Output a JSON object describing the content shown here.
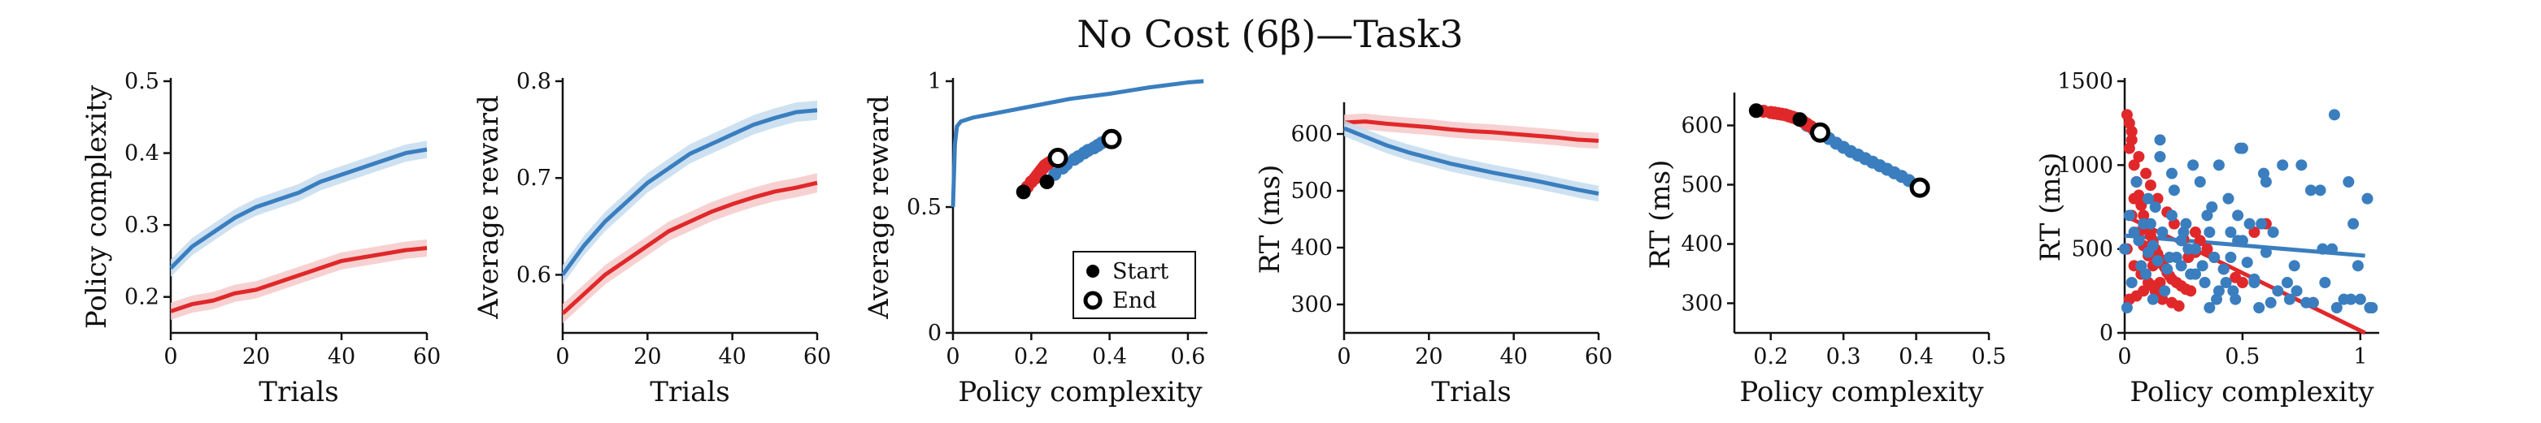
{
  "figure": {
    "title": "No Cost (6β)—Task3"
  },
  "colors": {
    "blue": "#3a7ebf",
    "red": "#e0282a",
    "blue_band": "#c6dcef",
    "red_band": "#f6c9c9"
  },
  "chart_data": [
    {
      "type": "line",
      "xlabel": "Trials",
      "ylabel": "Policy complexity",
      "xlim": [
        0,
        60
      ],
      "ylim": [
        0.15,
        0.5
      ],
      "xticks": [
        0,
        20,
        40,
        60
      ],
      "yticks": [
        0.2,
        0.3,
        0.4,
        0.5
      ],
      "ytick_labels": [
        "0.2",
        "0.3",
        "0.4",
        "0.5"
      ],
      "band": 0.012,
      "series": [
        {
          "color": "blue",
          "x": [
            0,
            5,
            10,
            15,
            20,
            25,
            30,
            35,
            40,
            45,
            50,
            55,
            60
          ],
          "y": [
            0.24,
            0.27,
            0.29,
            0.31,
            0.325,
            0.335,
            0.345,
            0.36,
            0.37,
            0.38,
            0.39,
            0.4,
            0.405
          ]
        },
        {
          "color": "red",
          "x": [
            0,
            5,
            10,
            15,
            20,
            25,
            30,
            35,
            40,
            45,
            50,
            55,
            60
          ],
          "y": [
            0.18,
            0.19,
            0.195,
            0.205,
            0.21,
            0.22,
            0.23,
            0.24,
            0.25,
            0.255,
            0.26,
            0.265,
            0.268
          ]
        }
      ]
    },
    {
      "type": "line",
      "xlabel": "Trials",
      "ylabel": "Average reward",
      "xlim": [
        0,
        60
      ],
      "ylim": [
        0.54,
        0.8
      ],
      "xticks": [
        0,
        20,
        40,
        60
      ],
      "yticks": [
        0.6,
        0.7,
        0.8
      ],
      "ytick_labels": [
        "0.6",
        "0.7",
        "0.8"
      ],
      "band": 0.01,
      "series": [
        {
          "color": "blue",
          "x": [
            0,
            5,
            10,
            15,
            20,
            25,
            30,
            35,
            40,
            45,
            50,
            55,
            60
          ],
          "y": [
            0.6,
            0.63,
            0.655,
            0.675,
            0.695,
            0.71,
            0.725,
            0.735,
            0.745,
            0.755,
            0.762,
            0.768,
            0.77
          ]
        },
        {
          "color": "red",
          "x": [
            0,
            5,
            10,
            15,
            20,
            25,
            30,
            35,
            40,
            45,
            50,
            55,
            60
          ],
          "y": [
            0.56,
            0.58,
            0.6,
            0.615,
            0.63,
            0.645,
            0.655,
            0.665,
            0.673,
            0.68,
            0.686,
            0.69,
            0.695
          ]
        }
      ]
    },
    {
      "type": "scatter",
      "xlabel": "Policy complexity",
      "ylabel": "Average reward",
      "xlim": [
        0,
        0.65
      ],
      "ylim": [
        0,
        1
      ],
      "xticks": [
        0,
        0.2,
        0.4,
        0.6
      ],
      "yticks": [
        0,
        0.5,
        1
      ],
      "xtick_labels": [
        "0",
        "0.2",
        "0.4",
        "0.6"
      ],
      "ytick_labels": [
        "0",
        "0.5",
        "1"
      ],
      "curve": {
        "color": "blue",
        "x": [
          0,
          0.005,
          0.01,
          0.02,
          0.05,
          0.1,
          0.2,
          0.3,
          0.4,
          0.5,
          0.6,
          0.64
        ],
        "y": [
          0.5,
          0.75,
          0.82,
          0.84,
          0.855,
          0.87,
          0.9,
          0.93,
          0.95,
          0.975,
          0.995,
          1.0
        ]
      },
      "red_points": {
        "x": [
          0.18,
          0.19,
          0.2,
          0.21,
          0.215,
          0.22,
          0.225,
          0.23,
          0.235,
          0.24,
          0.245,
          0.25,
          0.255,
          0.26,
          0.265,
          0.268
        ],
        "y": [
          0.56,
          0.58,
          0.6,
          0.615,
          0.625,
          0.635,
          0.645,
          0.655,
          0.665,
          0.67,
          0.675,
          0.68,
          0.685,
          0.69,
          0.693,
          0.695
        ]
      },
      "blue_points": {
        "x": [
          0.24,
          0.26,
          0.28,
          0.29,
          0.31,
          0.32,
          0.335,
          0.345,
          0.36,
          0.37,
          0.38,
          0.39,
          0.4,
          0.405
        ],
        "y": [
          0.6,
          0.63,
          0.655,
          0.67,
          0.69,
          0.7,
          0.715,
          0.725,
          0.735,
          0.745,
          0.755,
          0.762,
          0.768,
          0.77
        ]
      },
      "start_points": [
        {
          "x": 0.18,
          "y": 0.56
        },
        {
          "x": 0.24,
          "y": 0.6
        }
      ],
      "end_points": [
        {
          "x": 0.268,
          "y": 0.695
        },
        {
          "x": 0.405,
          "y": 0.77
        }
      ],
      "legend": {
        "position": "bottom-right",
        "entries": [
          "Start",
          "End"
        ]
      }
    },
    {
      "type": "line",
      "xlabel": "Trials",
      "ylabel": "RT (ms)",
      "xlim": [
        0,
        60
      ],
      "ylim": [
        250,
        650
      ],
      "xticks": [
        0,
        20,
        40,
        60
      ],
      "yticks": [
        300,
        400,
        500,
        600
      ],
      "ytick_labels": [
        "300",
        "400",
        "500",
        "600"
      ],
      "band": 14,
      "series": [
        {
          "color": "red",
          "x": [
            0,
            5,
            10,
            15,
            20,
            25,
            30,
            35,
            40,
            45,
            50,
            55,
            60
          ],
          "y": [
            620,
            622,
            618,
            615,
            612,
            608,
            605,
            603,
            600,
            597,
            594,
            590,
            588
          ]
        },
        {
          "color": "blue",
          "x": [
            0,
            5,
            10,
            15,
            20,
            25,
            30,
            35,
            40,
            45,
            50,
            55,
            60
          ],
          "y": [
            610,
            595,
            580,
            568,
            558,
            548,
            540,
            532,
            525,
            518,
            510,
            502,
            495
          ]
        }
      ]
    },
    {
      "type": "scatter",
      "xlabel": "Policy complexity",
      "ylabel": "RT (ms)",
      "xlim": [
        0.15,
        0.5
      ],
      "ylim": [
        250,
        650
      ],
      "xticks": [
        0.2,
        0.3,
        0.4,
        0.5
      ],
      "yticks": [
        300,
        400,
        500,
        600
      ],
      "xtick_labels": [
        "0.2",
        "0.3",
        "0.4",
        "0.5"
      ],
      "ytick_labels": [
        "300",
        "400",
        "500",
        "600"
      ],
      "red_points": {
        "x": [
          0.18,
          0.19,
          0.2,
          0.205,
          0.21,
          0.215,
          0.22,
          0.225,
          0.23,
          0.235,
          0.24,
          0.245,
          0.25,
          0.255,
          0.26,
          0.265,
          0.268
        ],
        "y": [
          625,
          624,
          622,
          621,
          620,
          619,
          618,
          616,
          614,
          612,
          610,
          606,
          602,
          598,
          594,
          590,
          588
        ]
      },
      "blue_points": {
        "x": [
          0.24,
          0.25,
          0.26,
          0.27,
          0.28,
          0.29,
          0.3,
          0.31,
          0.32,
          0.33,
          0.34,
          0.35,
          0.36,
          0.37,
          0.38,
          0.39,
          0.4,
          0.405
        ],
        "y": [
          610,
          600,
          592,
          585,
          578,
          570,
          563,
          556,
          550,
          544,
          538,
          532,
          526,
          520,
          514,
          507,
          500,
          495
        ]
      },
      "start_points": [
        {
          "x": 0.18,
          "y": 625
        },
        {
          "x": 0.24,
          "y": 610
        }
      ],
      "end_points": [
        {
          "x": 0.268,
          "y": 588
        },
        {
          "x": 0.405,
          "y": 495
        }
      ]
    },
    {
      "type": "scatter",
      "xlabel": "Policy complexity",
      "ylabel": "RT (ms)",
      "xlim": [
        0,
        1.08
      ],
      "ylim": [
        0,
        1500
      ],
      "xticks": [
        0,
        0.5,
        1
      ],
      "yticks": [
        0,
        500,
        1000,
        1500
      ],
      "xtick_labels": [
        "0",
        "0.5",
        "1"
      ],
      "ytick_labels": [
        "0",
        "500",
        "1000",
        "1500"
      ],
      "red_points": {
        "x": [
          0.01,
          0.02,
          0.03,
          0.04,
          0.05,
          0.06,
          0.07,
          0.08,
          0.09,
          0.1,
          0.11,
          0.12,
          0.13,
          0.14,
          0.15,
          0.16,
          0.17,
          0.18,
          0.19,
          0.2,
          0.22,
          0.24,
          0.26,
          0.28,
          0.3,
          0.32,
          0.35,
          0.38,
          0.42,
          0.47,
          0.5,
          0.55,
          0.6,
          0.8,
          0.02,
          0.05,
          0.08,
          0.12,
          0.15,
          0.03,
          0.06,
          0.09,
          0.11,
          0.14,
          0.18,
          0.21,
          0.25,
          0.04,
          0.07,
          0.1,
          0.13,
          0.16,
          0.2,
          0.23,
          0.27,
          0.3,
          0.01,
          0.03,
          0.05,
          0.02,
          0.04,
          0.06,
          0.08,
          0.1,
          0.12
        ],
        "y": [
          1300,
          1250,
          1150,
          1000,
          900,
          820,
          760,
          700,
          650,
          610,
          580,
          540,
          500,
          470,
          440,
          410,
          390,
          360,
          340,
          320,
          300,
          280,
          260,
          250,
          600,
          550,
          500,
          450,
          380,
          330,
          300,
          600,
          650,
          180,
          200,
          220,
          250,
          280,
          300,
          1200,
          1050,
          950,
          880,
          800,
          720,
          650,
          560,
          400,
          350,
          300,
          250,
          200,
          180,
          160,
          450,
          480,
          500,
          700,
          900,
          1100,
          800,
          600,
          520,
          460,
          400
        ]
      },
      "blue_points": {
        "x": [
          0.0,
          0.02,
          0.04,
          0.06,
          0.08,
          0.1,
          0.12,
          0.14,
          0.16,
          0.18,
          0.2,
          0.22,
          0.24,
          0.26,
          0.28,
          0.3,
          0.32,
          0.34,
          0.36,
          0.38,
          0.4,
          0.42,
          0.44,
          0.46,
          0.48,
          0.5,
          0.52,
          0.55,
          0.58,
          0.6,
          0.62,
          0.65,
          0.7,
          0.75,
          0.8,
          0.85,
          0.88,
          0.9,
          0.95,
          1.0,
          1.05,
          0.05,
          0.1,
          0.15,
          0.2,
          0.25,
          0.3,
          0.35,
          0.4,
          0.45,
          0.5,
          0.55,
          0.03,
          0.07,
          0.11,
          0.13,
          0.17,
          0.21,
          0.27,
          0.33,
          0.37,
          0.43,
          0.47,
          0.53,
          0.57,
          0.63,
          0.67,
          0.73,
          0.77,
          0.83,
          0.93,
          0.97,
          1.03,
          0.01,
          0.09,
          0.19,
          0.29,
          0.39,
          0.49,
          0.59,
          0.69,
          0.79,
          0.89,
          0.99,
          0.12,
          0.24,
          0.36,
          0.48,
          0.6,
          0.72,
          0.84,
          0.96,
          1.04,
          0.15,
          0.45
        ],
        "y": [
          500,
          700,
          600,
          550,
          650,
          480,
          520,
          430,
          600,
          380,
          700,
          450,
          400,
          650,
          350,
          500,
          900,
          300,
          600,
          450,
          1000,
          380,
          800,
          250,
          550,
          1100,
          420,
          300,
          650,
          900,
          180,
          250,
          200,
          1000,
          180,
          300,
          500,
          150,
          900,
          200,
          150,
          900,
          800,
          1050,
          950,
          600,
          350,
          700,
          250,
          450,
          550,
          320,
          300,
          400,
          650,
          750,
          250,
          850,
          500,
          400,
          750,
          300,
          200,
          650,
          150,
          600,
          1000,
          250,
          180,
          850,
          200,
          650,
          800,
          150,
          350,
          450,
          1000,
          200,
          1100,
          950,
          300,
          850,
          1300,
          400,
          200,
          550,
          150,
          700,
          480,
          400,
          500,
          200,
          150,
          1150,
          600
        ]
      },
      "fit_lines": [
        {
          "color": "red",
          "x": [
            0,
            1.02
          ],
          "y": [
            700,
            0
          ]
        },
        {
          "color": "blue",
          "x": [
            0,
            1.02
          ],
          "y": [
            580,
            460
          ]
        }
      ]
    }
  ]
}
